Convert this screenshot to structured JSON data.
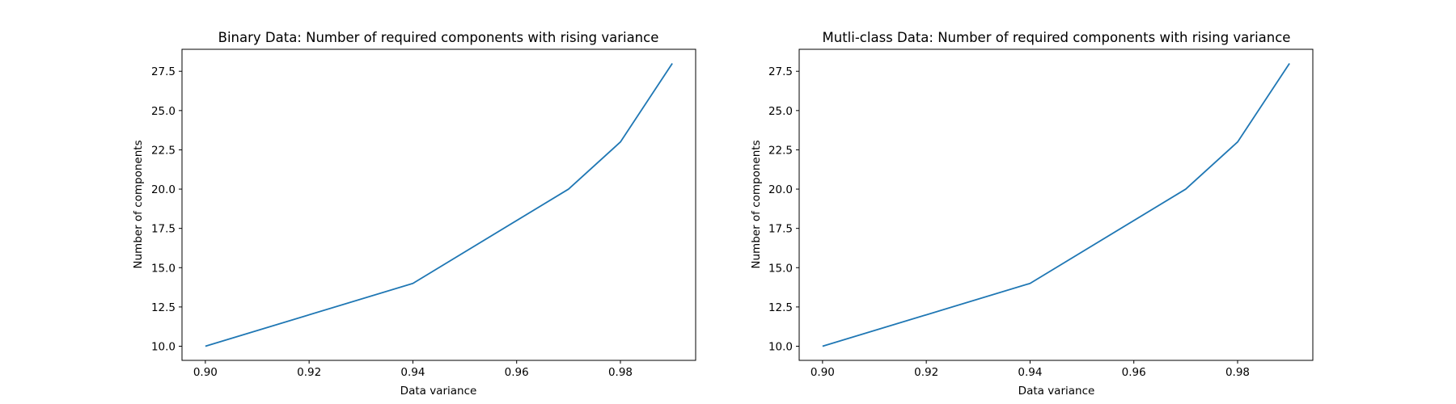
{
  "chart_data": [
    {
      "type": "line",
      "title": "Binary Data: Number of required components with rising variance",
      "xlabel": "Data variance",
      "ylabel": "Number of components",
      "x": [
        0.9,
        0.94,
        0.97,
        0.98,
        0.99
      ],
      "series": [
        {
          "name": "components",
          "values": [
            10,
            14,
            20,
            23,
            28
          ],
          "color": "#1f77b4"
        }
      ],
      "xlim": [
        0.8955,
        0.9945
      ],
      "ylim": [
        9.1,
        28.9
      ],
      "xticks": [
        "0.90",
        "0.92",
        "0.94",
        "0.96",
        "0.98"
      ],
      "xtick_values": [
        0.9,
        0.92,
        0.94,
        0.96,
        0.98
      ],
      "yticks": [
        "10.0",
        "12.5",
        "15.0",
        "17.5",
        "20.0",
        "22.5",
        "25.0",
        "27.5"
      ],
      "ytick_values": [
        10.0,
        12.5,
        15.0,
        17.5,
        20.0,
        22.5,
        25.0,
        27.5
      ],
      "grid": false
    },
    {
      "type": "line",
      "title": "Mutli-class Data: Number of required components with rising variance",
      "xlabel": "Data variance",
      "ylabel": "Number of components",
      "x": [
        0.9,
        0.94,
        0.97,
        0.98,
        0.99
      ],
      "series": [
        {
          "name": "components",
          "values": [
            10,
            14,
            20,
            23,
            28
          ],
          "color": "#1f77b4"
        }
      ],
      "xlim": [
        0.8955,
        0.9945
      ],
      "ylim": [
        9.1,
        28.9
      ],
      "xticks": [
        "0.90",
        "0.92",
        "0.94",
        "0.96",
        "0.98"
      ],
      "xtick_values": [
        0.9,
        0.92,
        0.94,
        0.96,
        0.98
      ],
      "yticks": [
        "10.0",
        "12.5",
        "15.0",
        "17.5",
        "20.0",
        "22.5",
        "25.0",
        "27.5"
      ],
      "ytick_values": [
        10.0,
        12.5,
        15.0,
        17.5,
        20.0,
        22.5,
        25.0,
        27.5
      ],
      "grid": false
    }
  ]
}
